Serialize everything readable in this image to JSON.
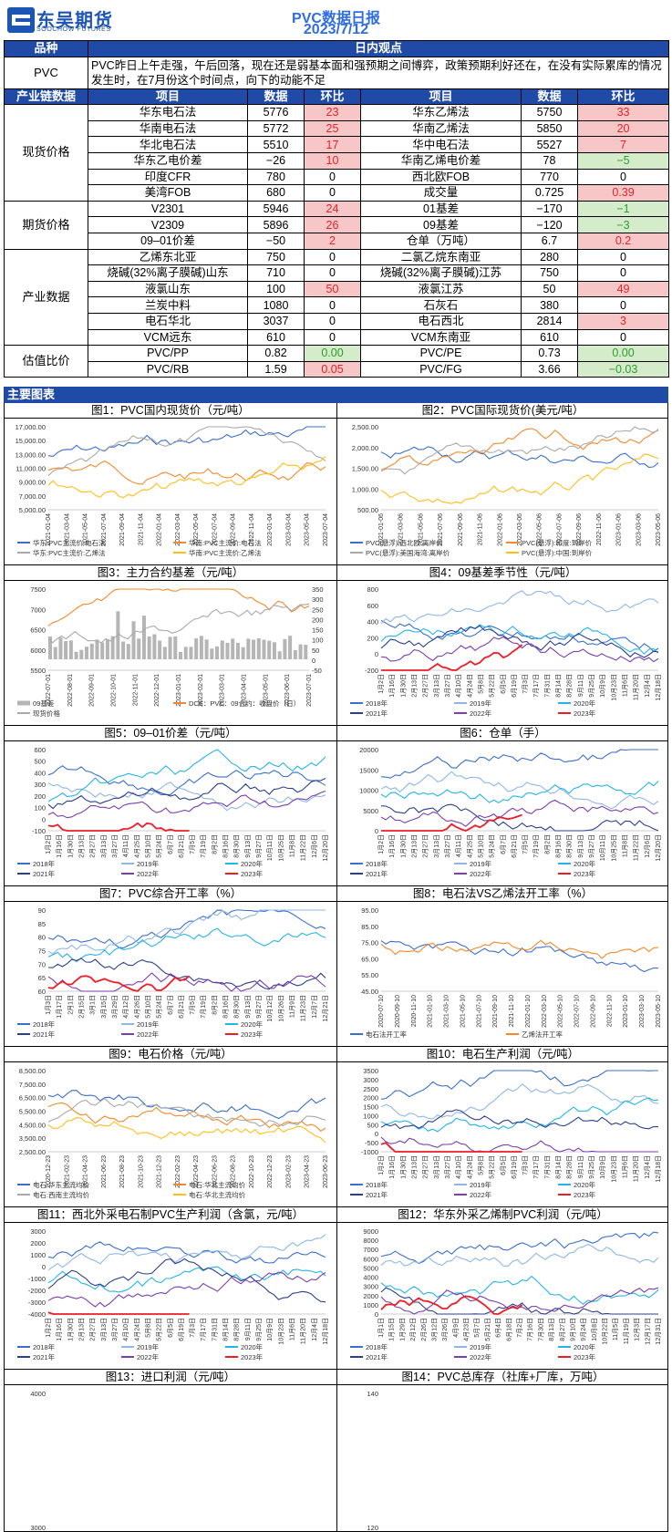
{
  "header": {
    "logo_cn": "东吴期货",
    "logo_en": "SOOCHOW FUTURES",
    "title": "PVC数据日报",
    "date": "2023/7/12"
  },
  "table": {
    "h1_left": "品种",
    "h1_right": "日内观点",
    "pvc_label": "PVC",
    "pvc_view": "PVC昨日上午走强，午后回落，现在还是弱基本面和强预期之间博弈，政策预期利好还在，在没有实际累库的情况发生时，在7月份这个时间点，向下的动能不足",
    "h2": [
      "产业链数据",
      "项目",
      "数据",
      "环比",
      "项目",
      "数据",
      "环比"
    ],
    "groups": [
      {
        "name": "现货价格",
        "rows": [
          {
            "a": "华东电石法",
            "av": "5776",
            "ac": "23",
            "at": "up",
            "b": "华东乙烯法",
            "bv": "5750",
            "bc": "33",
            "bt": "up"
          },
          {
            "a": "华南电石法",
            "av": "5772",
            "ac": "25",
            "at": "up",
            "b": "华南乙烯法",
            "bv": "5850",
            "bc": "20",
            "bt": "up"
          },
          {
            "a": "华北电石法",
            "av": "5510",
            "ac": "17",
            "at": "up",
            "b": "华中电石法",
            "bv": "5527",
            "bc": "7",
            "bt": "up"
          },
          {
            "a": "华东乙电价差",
            "av": "−26",
            "ac": "10",
            "at": "up",
            "b": "华南乙烯电价差",
            "bv": "78",
            "bc": "−5",
            "bt": "dn"
          },
          {
            "a": "印度CFR",
            "av": "780",
            "ac": "0",
            "at": "",
            "b": "西北欧FOB",
            "bv": "770",
            "bc": "0",
            "bt": ""
          },
          {
            "a": "美湾FOB",
            "av": "680",
            "ac": "0",
            "at": "",
            "b": "成交量",
            "bv": "0.725",
            "bc": "0.39",
            "bt": "up"
          }
        ]
      },
      {
        "name": "期货价格",
        "rows": [
          {
            "a": "V2301",
            "av": "5946",
            "ac": "24",
            "at": "up",
            "b": "01基差",
            "bv": "−170",
            "bc": "−1",
            "bt": "dn"
          },
          {
            "a": "V2309",
            "av": "5896",
            "ac": "26",
            "at": "up",
            "b": "09基差",
            "bv": "−120",
            "bc": "−3",
            "bt": "dn"
          },
          {
            "a": "09–01价差",
            "av": "−50",
            "ac": "2",
            "at": "up",
            "b": "仓单（万吨）",
            "bv": "6.7",
            "bc": "0.2",
            "bt": "up"
          }
        ]
      },
      {
        "name": "产业数据",
        "rows": [
          {
            "a": "乙烯东北亚",
            "av": "750",
            "ac": "0",
            "at": "",
            "b": "二氯乙烷东南亚",
            "bv": "280",
            "bc": "0",
            "bt": ""
          },
          {
            "a": "烧碱(32%离子膜碱)山东",
            "av": "710",
            "ac": "0",
            "at": "",
            "b": "烧碱(32%离子膜碱)江苏",
            "bv": "750",
            "bc": "0",
            "bt": ""
          },
          {
            "a": "液氯山东",
            "av": "100",
            "ac": "50",
            "at": "up",
            "b": "液氯江苏",
            "bv": "50",
            "bc": "49",
            "bt": "up"
          },
          {
            "a": "兰炭中料",
            "av": "1080",
            "ac": "0",
            "at": "",
            "b": "石灰石",
            "bv": "380",
            "bc": "0",
            "bt": ""
          },
          {
            "a": "电石华北",
            "av": "3037",
            "ac": "0",
            "at": "",
            "b": "电石西北",
            "bv": "2814",
            "bc": "3",
            "bt": "up"
          },
          {
            "a": "VCM远东",
            "av": "610",
            "ac": "0",
            "at": "",
            "b": "VCM东南亚",
            "bv": "610",
            "bc": "0",
            "bt": ""
          }
        ]
      },
      {
        "name": "估值比价",
        "rows": [
          {
            "a": "PVC/PP",
            "av": "0.82",
            "ac": "0.00",
            "at": "dn",
            "b": "PVC/PE",
            "bv": "0.73",
            "bc": "0.00",
            "bt": "dn"
          },
          {
            "a": "PVC/RB",
            "av": "1.59",
            "ac": "0.05",
            "at": "up",
            "b": "PVC/FG",
            "bv": "3.66",
            "bc": "−0.03",
            "bt": "dn"
          }
        ]
      }
    ]
  },
  "section_title": "主要图表",
  "colors": {
    "header_blue": "#1f4aa6",
    "title_blue": "#2f6de0",
    "up_bg": "#f7c7c8",
    "up_fg": "#e2232a",
    "dn_bg": "#d4ecc9",
    "dn_fg": "#2f9b2f"
  },
  "charts": [
    {
      "title": "图1：PVC国内现货价（元/吨）",
      "yticks": [
        "17,000.00",
        "15,000.00",
        "13,000.00",
        "11,000.00",
        "9,000.00",
        "7,000.00",
        "5,000.00"
      ],
      "xticks": [
        "2021-01-04",
        "2021-03-04",
        "2021-05-04",
        "2021-07-04",
        "2021-09-04",
        "2021-11-04",
        "2022-01-04",
        "2022-03-04",
        "2022-05-04",
        "2022-07-04",
        "2022-09-04",
        "2022-11-04",
        "2023-01-04",
        "2023-03-04",
        "2023-05-04",
        "2023-07-04"
      ],
      "legend": [
        "华东:PVC主流价:电石法",
        "华南:PVC主流价:电石法",
        "华东:PVC主流价:乙烯法",
        "华南:PVC主流价:乙烯法"
      ]
    },
    {
      "title": "图2：PVC国际现货价(美元/吨）",
      "yticks": [
        "2,500.00",
        "2,000.00",
        "1,500.00",
        "1,000.00",
        "500.00"
      ],
      "xticks": [
        "2021-01-06",
        "2021-03-06",
        "2021-05-06",
        "2021-07-06",
        "2021-09-06",
        "2021-11-06",
        "2022-01-06",
        "2022-03-06",
        "2022-05-06",
        "2022-07-06",
        "2022-09-06",
        "2022-11-06",
        "2023-01-06",
        "2023-03-06",
        "2023-05-06"
      ],
      "legend": [
        "PVC(悬浮):西北欧:离岸价",
        "PVC(悬浮):印度:到岸价",
        "PVC(悬浮):美国海湾:离岸价",
        "PVC(悬浮):中国:到岸价"
      ]
    },
    {
      "title": "图3：主力合约基差（元/吨）",
      "yticks": [
        "7500",
        "7000",
        "6500",
        "6000",
        "5500"
      ],
      "y2ticks": [
        "350",
        "300",
        "250",
        "200",
        "150",
        "100",
        "50",
        "0",
        "-50"
      ],
      "xticks": [
        "2022-07-01",
        "2022-08-01",
        "2022-09-01",
        "2022-10-01",
        "2022-11-01",
        "2022-12-01",
        "2023-01-01",
        "2023-02-01",
        "2023-03-01",
        "2023-04-01",
        "2023-05-01",
        "2023-06-01",
        "2023-07-01"
      ],
      "legend": [
        "09基差",
        "DCE：PVC：09合约：收盘价（日）",
        "现货价格"
      ]
    },
    {
      "title": "图4：09基差季节性（元/吨）",
      "yticks": [
        "800",
        "600",
        "400",
        "200",
        "0",
        "-200"
      ],
      "xticks": [
        "1月2日",
        "1月16日",
        "1月30日",
        "2月13日",
        "2月27日",
        "3月13日",
        "3月27日",
        "4月10日",
        "4月24日",
        "5月8日",
        "5月22日",
        "6月5日",
        "6月19日",
        "7月3日",
        "7月17日",
        "7月31日",
        "8月14日",
        "8月28日",
        "9月11日",
        "9月25日",
        "10月9日",
        "10月23日",
        "11月6日",
        "11月20日",
        "12月4日",
        "12月18日"
      ],
      "legend": [
        "2018年",
        "2019年",
        "2020年",
        "2021年",
        "2022年",
        "2023年"
      ]
    },
    {
      "title": "图5：09–01价差（元/吨）",
      "yticks": [
        "600",
        "500",
        "400",
        "300",
        "200",
        "100",
        "0",
        "-100"
      ],
      "xticks": [
        "1月2日",
        "1月16日",
        "1月30日",
        "2月13日",
        "2月27日",
        "3月13日",
        "3月27日",
        "4月11日",
        "4月25日",
        "5月10日",
        "5月24日",
        "6月7日",
        "6月21日",
        "7月5日",
        "7月19日",
        "8月2日",
        "8月16日",
        "8月30日",
        "9月13日",
        "9月27日",
        "10月11日",
        "10月25日",
        "11月8日",
        "11月22日",
        "12月6日",
        "12月20日"
      ],
      "legend": [
        "2018年",
        "2019年",
        "2020年",
        "2021年",
        "2022年",
        "2023年"
      ]
    },
    {
      "title": "图6：仓单（手）",
      "yticks": [
        "20000",
        "15000",
        "10000",
        "5000",
        "0"
      ],
      "xticks": [
        "1月2日",
        "1月16日",
        "1月30日",
        "2月13日",
        "2月27日",
        "3月13日",
        "3月27日",
        "4月11日",
        "4月25日",
        "5月10日",
        "5月24日",
        "6月7日",
        "6月21日",
        "7月5日",
        "7月19日",
        "8月2日",
        "8月16日",
        "8月30日",
        "9月13日",
        "9月27日",
        "10月11日",
        "10月25日",
        "11月8日",
        "11月22日",
        "12月6日",
        "12月20日"
      ],
      "legend": [
        "2018年",
        "2019年",
        "2020年",
        "2021年",
        "2022年",
        "2023年"
      ]
    },
    {
      "title": "图7：PVC综合开工率（%）",
      "yticks": [
        "90",
        "85",
        "80",
        "75",
        "70",
        "65",
        "60"
      ],
      "xticks": [
        "1月3日",
        "1月17日",
        "2月1日",
        "2月15日",
        "3月1日",
        "3月15日",
        "3月29日",
        "4月12日",
        "4月26日",
        "5月10日",
        "5月24日",
        "6月7日",
        "6月21日",
        "7月5日",
        "7月19日",
        "8月2日",
        "8月16日",
        "8月30日",
        "9月13日",
        "9月27日",
        "10月12日",
        "10月26日",
        "11月9日",
        "11月23日",
        "12月7日",
        "12月21日"
      ],
      "legend": [
        "2018年",
        "2019年",
        "2020年",
        "2021年",
        "2022年",
        "2023年"
      ]
    },
    {
      "title": "图8：电石法VS乙烯法开工率（%）",
      "yticks": [
        "95.00",
        "85.00",
        "75.00",
        "65.00",
        "55.00",
        "45.00"
      ],
      "xticks": [
        "2020-07-10",
        "2020-09-10",
        "2020-11-10",
        "2021-01-10",
        "2021-03-10",
        "2021-05-10",
        "2021-07-10",
        "2021-09-10",
        "2021-11-10",
        "2022-01-10",
        "2022-03-10",
        "2022-05-10",
        "2022-07-10",
        "2022-09-10",
        "2022-11-10",
        "2023-01-10",
        "2023-03-10",
        "2023-05-10"
      ],
      "legend": [
        "电石法开工率",
        "乙烯法开工率"
      ]
    },
    {
      "title": "图9：电石价格（元/吨）",
      "yticks": [
        "8,500.00",
        "7,500.00",
        "6,500.00",
        "5,500.00",
        "4,500.00",
        "3,500.00",
        "2,500.00"
      ],
      "xticks": [
        "2020-12-23",
        "2021-02-23",
        "2021-04-23",
        "2021-06-23",
        "2021-08-23",
        "2021-10-23",
        "2021-12-23",
        "2022-02-23",
        "2022-04-23",
        "2022-06-23",
        "2022-08-23",
        "2022-10-23",
        "2022-12-23",
        "2023-02-23",
        "2023-04-23",
        "2023-06-23"
      ],
      "legend": [
        "电石:华东主流均价",
        "电石:华北主流均价",
        "电石:西南主流均价",
        "电石:华北主流均价"
      ]
    },
    {
      "title": "图10：电石生产利润（元/吨）",
      "yticks": [
        "3500",
        "3000",
        "2500",
        "2000",
        "1500",
        "1000",
        "500",
        "0",
        "-500",
        "-1000"
      ],
      "xticks": [
        "1月2日",
        "1月16日",
        "1月30日",
        "2月13日",
        "2月27日",
        "3月13日",
        "3月27日",
        "4月10日",
        "4月24日",
        "5月8日",
        "5月22日",
        "6月5日",
        "6月19日",
        "7月3日",
        "7月17日",
        "7月31日",
        "8月14日",
        "8月28日",
        "9月11日",
        "9月25日",
        "10月9日",
        "10月23日",
        "11月6日",
        "11月20日",
        "12月4日",
        "12月18日"
      ],
      "legend": [
        "2018年",
        "2019年",
        "2020年",
        "2021年",
        "2022年",
        "2023年"
      ]
    },
    {
      "title": "图11：西北外采电石制PVC生产利润（含氯，元/吨）",
      "yticks": [
        "3000",
        "2000",
        "1000",
        "0",
        "-1000",
        "-2000",
        "-3000",
        "-4000"
      ],
      "xticks": [
        "1月2日",
        "1月16日",
        "1月30日",
        "2月13日",
        "2月27日",
        "3月13日",
        "3月27日",
        "4月10日",
        "4月24日",
        "5月8日",
        "5月22日",
        "6月5日",
        "6月19日",
        "7月3日",
        "7月17日",
        "7月31日",
        "8月14日",
        "8月28日",
        "9月11日",
        "9月25日",
        "10月9日",
        "10月23日",
        "11月6日",
        "11月20日",
        "12月4日",
        "12月18日"
      ],
      "legend": [
        "2018年",
        "2019年",
        "2020年",
        "2021年",
        "2022年",
        "2023年"
      ]
    },
    {
      "title": "图12：华东外采乙烯制PVC利润（元/吨）",
      "yticks": [
        "9000",
        "8000",
        "7000",
        "6000",
        "5000",
        "4000",
        "3000",
        "2000",
        "1000",
        "0"
      ],
      "xticks": [
        "1月1日",
        "1月15日",
        "1月29日",
        "2月12日",
        "2月26日",
        "3月12日",
        "3月26日",
        "4月9日",
        "4月23日",
        "5月7日",
        "5月21日",
        "6月4日",
        "6月18日",
        "7月2日",
        "7月16日",
        "7月30日",
        "8月13日",
        "8月27日",
        "9月10日",
        "9月24日",
        "10月8日",
        "10月22日",
        "11月5日",
        "11月19日",
        "12月3日",
        "12月17日",
        "12月31日"
      ],
      "legend": [
        "2018年",
        "2019年",
        "2020年",
        "2021年",
        "2022年",
        "2023年"
      ]
    },
    {
      "title": "图13：进口利润（元/吨）",
      "yticks": [
        "4000",
        "3000"
      ]
    },
    {
      "title": "图14：PVC总库存（社库+厂库，万吨）",
      "yticks": [
        "140",
        "120"
      ]
    }
  ]
}
